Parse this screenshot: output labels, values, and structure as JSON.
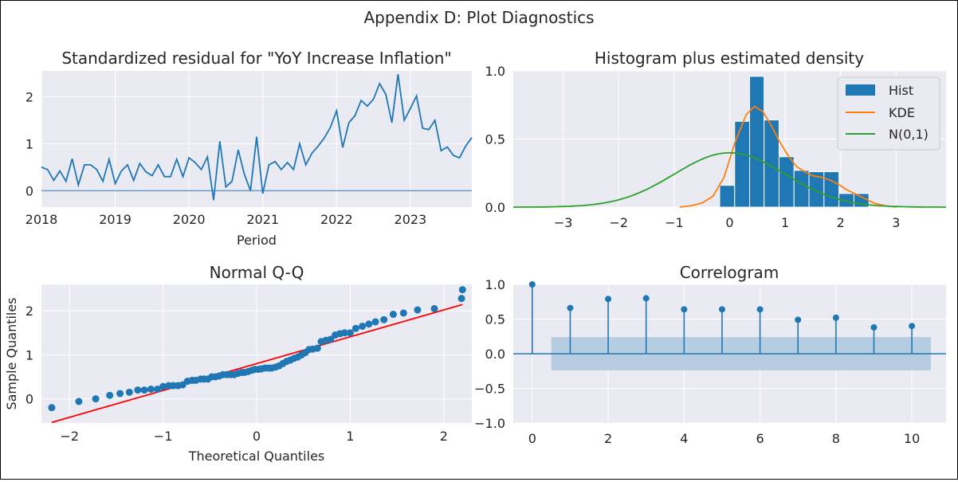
{
  "figure": {
    "suptitle": "Appendix D: Plot Diagnostics"
  },
  "chart_data": [
    {
      "id": "residual",
      "type": "line",
      "title": "Standardized residual for \"YoY Increase Inflation\"",
      "xlabel": "Period",
      "ylabel": "",
      "x_ticks": [
        "2018",
        "2019",
        "2020",
        "2021",
        "2022",
        "2023"
      ],
      "xlim": [
        2018.0,
        2023.833
      ],
      "ylim": [
        -0.35,
        2.55
      ],
      "y_ticks": [
        0,
        1,
        2
      ],
      "grid": true,
      "zero_line": 0,
      "x": [
        2018.0,
        2018.083,
        2018.167,
        2018.25,
        2018.333,
        2018.417,
        2018.5,
        2018.583,
        2018.667,
        2018.75,
        2018.833,
        2018.917,
        2019.0,
        2019.083,
        2019.167,
        2019.25,
        2019.333,
        2019.417,
        2019.5,
        2019.583,
        2019.667,
        2019.75,
        2019.833,
        2019.917,
        2020.0,
        2020.083,
        2020.167,
        2020.25,
        2020.333,
        2020.417,
        2020.5,
        2020.583,
        2020.667,
        2020.75,
        2020.833,
        2020.917,
        2021.0,
        2021.083,
        2021.167,
        2021.25,
        2021.333,
        2021.417,
        2021.5,
        2021.583,
        2021.667,
        2021.75,
        2021.833,
        2021.917,
        2022.0,
        2022.083,
        2022.167,
        2022.25,
        2022.333,
        2022.417,
        2022.5,
        2022.583,
        2022.667,
        2022.75,
        2022.833,
        2022.917,
        2023.0,
        2023.083,
        2023.167,
        2023.25,
        2023.333,
        2023.417,
        2023.5,
        2023.583,
        2023.667,
        2023.75,
        2023.833
      ],
      "y": [
        0.5,
        0.45,
        0.22,
        0.42,
        0.2,
        0.68,
        0.12,
        0.55,
        0.55,
        0.45,
        0.2,
        0.67,
        0.15,
        0.42,
        0.55,
        0.22,
        0.58,
        0.4,
        0.32,
        0.55,
        0.3,
        0.3,
        0.67,
        0.3,
        0.7,
        0.6,
        0.45,
        0.72,
        -0.2,
        1.05,
        0.08,
        0.2,
        0.87,
        0.35,
        0.0,
        1.15,
        -0.06,
        0.55,
        0.62,
        0.45,
        0.6,
        0.45,
        1.0,
        0.55,
        0.8,
        0.95,
        1.12,
        1.35,
        1.7,
        0.92,
        1.45,
        1.6,
        1.92,
        1.8,
        1.95,
        2.28,
        2.05,
        1.45,
        2.48,
        1.5,
        1.75,
        2.02,
        1.33,
        1.3,
        1.5,
        0.85,
        0.93,
        0.75,
        0.7,
        0.95,
        1.13
      ]
    },
    {
      "id": "histogram",
      "type": "bar",
      "title": "Histogram plus estimated density",
      "xlim": [
        -3.9,
        3.9
      ],
      "ylim": [
        0,
        1.0
      ],
      "x_ticks": [
        -3,
        -2,
        -1,
        0,
        1,
        2,
        3
      ],
      "y_ticks": [
        "0.0",
        "0.5",
        "1.0"
      ],
      "legend_position": "top-right",
      "legend": [
        "Hist",
        "KDE",
        "N(0,1)"
      ],
      "bin_edges": [
        -0.18,
        0.09,
        0.36,
        0.62,
        0.89,
        1.16,
        1.43,
        1.7,
        1.97,
        2.24,
        2.51
      ],
      "hist": [
        0.16,
        0.63,
        0.96,
        0.64,
        0.37,
        0.27,
        0.26,
        0.26,
        0.1,
        0.1
      ],
      "kde_x": [
        -0.9,
        -0.7,
        -0.5,
        -0.3,
        -0.1,
        0.1,
        0.3,
        0.45,
        0.6,
        0.75,
        0.9,
        1.05,
        1.2,
        1.35,
        1.5,
        1.65,
        1.8,
        1.95,
        2.1,
        2.25,
        2.4,
        2.6,
        2.8,
        3.0
      ],
      "kde_y": [
        0.0,
        0.01,
        0.03,
        0.08,
        0.22,
        0.48,
        0.68,
        0.74,
        0.7,
        0.6,
        0.48,
        0.38,
        0.3,
        0.26,
        0.23,
        0.22,
        0.2,
        0.17,
        0.13,
        0.1,
        0.07,
        0.03,
        0.01,
        0.0
      ],
      "normal": {
        "mean": 0,
        "std": 1
      }
    },
    {
      "id": "qq",
      "type": "scatter",
      "title": "Normal Q-Q",
      "xlabel": "Theoretical Quantiles",
      "ylabel": "Sample Quantiles",
      "xlim": [
        -2.3,
        2.3
      ],
      "ylim": [
        -0.55,
        2.6
      ],
      "x_ticks": [
        -2,
        -1,
        0,
        1,
        2
      ],
      "y_ticks": [
        0,
        1,
        2
      ],
      "theoretical": [
        -2.19,
        -1.9,
        -1.72,
        -1.57,
        -1.46,
        -1.36,
        -1.27,
        -1.2,
        -1.13,
        -1.06,
        -1.0,
        -0.94,
        -0.89,
        -0.84,
        -0.79,
        -0.74,
        -0.69,
        -0.65,
        -0.6,
        -0.56,
        -0.52,
        -0.48,
        -0.44,
        -0.4,
        -0.36,
        -0.32,
        -0.28,
        -0.24,
        -0.2,
        -0.16,
        -0.13,
        -0.09,
        -0.05,
        -0.02,
        0.02,
        0.05,
        0.09,
        0.13,
        0.16,
        0.2,
        0.24,
        0.28,
        0.32,
        0.36,
        0.4,
        0.44,
        0.48,
        0.52,
        0.56,
        0.6,
        0.65,
        0.69,
        0.74,
        0.79,
        0.84,
        0.89,
        0.94,
        1.0,
        1.06,
        1.13,
        1.2,
        1.27,
        1.36,
        1.46,
        1.57,
        1.72,
        1.9,
        2.19
      ],
      "sample": [
        -0.2,
        -0.06,
        0.0,
        0.08,
        0.12,
        0.15,
        0.2,
        0.2,
        0.22,
        0.22,
        0.28,
        0.3,
        0.3,
        0.3,
        0.32,
        0.4,
        0.42,
        0.42,
        0.45,
        0.45,
        0.45,
        0.5,
        0.5,
        0.52,
        0.55,
        0.55,
        0.55,
        0.55,
        0.58,
        0.6,
        0.6,
        0.62,
        0.65,
        0.67,
        0.67,
        0.68,
        0.7,
        0.7,
        0.7,
        0.72,
        0.75,
        0.8,
        0.85,
        0.88,
        0.92,
        0.95,
        1.0,
        1.05,
        1.12,
        1.13,
        1.15,
        1.3,
        1.33,
        1.35,
        1.45,
        1.48,
        1.5,
        1.5,
        1.6,
        1.65,
        1.7,
        1.75,
        1.8,
        1.92,
        1.95,
        2.02,
        2.05,
        2.28
      ],
      "sample_tail": [
        2.48
      ],
      "theoretical_tail": [
        2.2
      ],
      "fit_line": {
        "intercept": 0.8,
        "slope": 0.61
      }
    },
    {
      "id": "acf",
      "type": "stem",
      "title": "Correlogram",
      "xlim": [
        -0.5,
        10.9
      ],
      "ylim": [
        -1.0,
        1.0
      ],
      "x_ticks": [
        0,
        2,
        4,
        6,
        8,
        10
      ],
      "y_ticks": [
        "−1.0",
        "−0.5",
        "0.0",
        "0.5",
        "1.0"
      ],
      "lags": [
        0,
        1,
        2,
        3,
        4,
        5,
        6,
        7,
        8,
        9,
        10
      ],
      "values": [
        1.0,
        0.66,
        0.79,
        0.8,
        0.64,
        0.64,
        0.64,
        0.49,
        0.52,
        0.38,
        0.4
      ],
      "confidence_band": [
        -0.24,
        0.24
      ]
    }
  ],
  "colors": {
    "axes_bg": "#eaeaf2",
    "grid": "#ffffff",
    "blue": "#1f77b4",
    "orange": "#ff7f0e",
    "green": "#2ca02c",
    "red": "#ff0000",
    "band": "#b5cce1",
    "zero_line": "#6b9bc8"
  }
}
